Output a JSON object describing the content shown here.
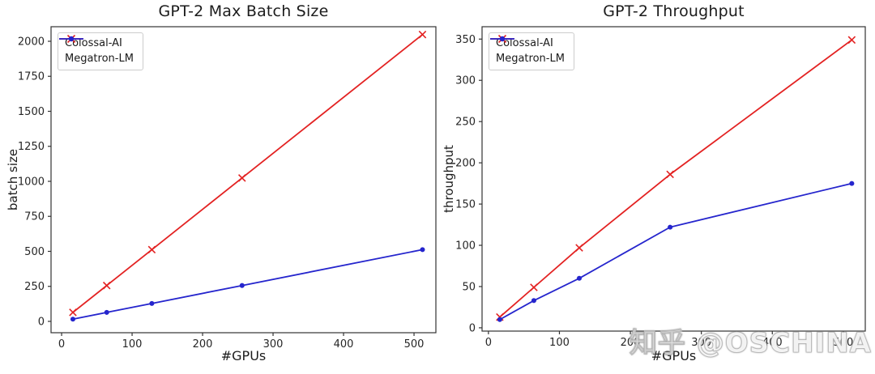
{
  "watermark": {
    "text": "知乎 @OSCHINA"
  },
  "chart_data": [
    {
      "type": "line",
      "title": "GPT-2 Max Batch Size",
      "xlabel": "#GPUs",
      "ylabel": "batch size",
      "x": [
        16,
        64,
        128,
        256,
        512
      ],
      "series": [
        {
          "name": "Colossal-AI",
          "color": "#e32222",
          "marker": "x",
          "values": [
            64,
            256,
            512,
            1024,
            2048
          ]
        },
        {
          "name": "Megatron-LM",
          "color": "#2525cd",
          "marker": "dot",
          "values": [
            16,
            64,
            128,
            256,
            512
          ]
        }
      ],
      "xticks": [
        0,
        100,
        200,
        300,
        400,
        500
      ],
      "yticks": [
        0,
        250,
        500,
        750,
        1000,
        1250,
        1500,
        1750,
        2000
      ],
      "xlim": [
        -15,
        531
      ],
      "ylim": [
        -81,
        2104
      ],
      "grid": false,
      "legend_position": "upper left"
    },
    {
      "type": "line",
      "title": "GPT-2 Throughput",
      "xlabel": "#GPUs",
      "ylabel": "throughput",
      "x": [
        16,
        64,
        128,
        256,
        512
      ],
      "series": [
        {
          "name": "Colossal-AI",
          "color": "#e32222",
          "marker": "x",
          "values": [
            13,
            49,
            97,
            186,
            349
          ]
        },
        {
          "name": "Megatron-LM",
          "color": "#2525cd",
          "marker": "dot",
          "values": [
            10,
            33,
            60,
            122,
            175
          ]
        }
      ],
      "xticks": [
        0,
        100,
        200,
        300,
        400,
        500
      ],
      "yticks": [
        0,
        50,
        100,
        150,
        200,
        250,
        300,
        350
      ],
      "xlim": [
        -9,
        531
      ],
      "ylim": [
        -4,
        365
      ],
      "grid": false,
      "legend_position": "upper left"
    }
  ]
}
